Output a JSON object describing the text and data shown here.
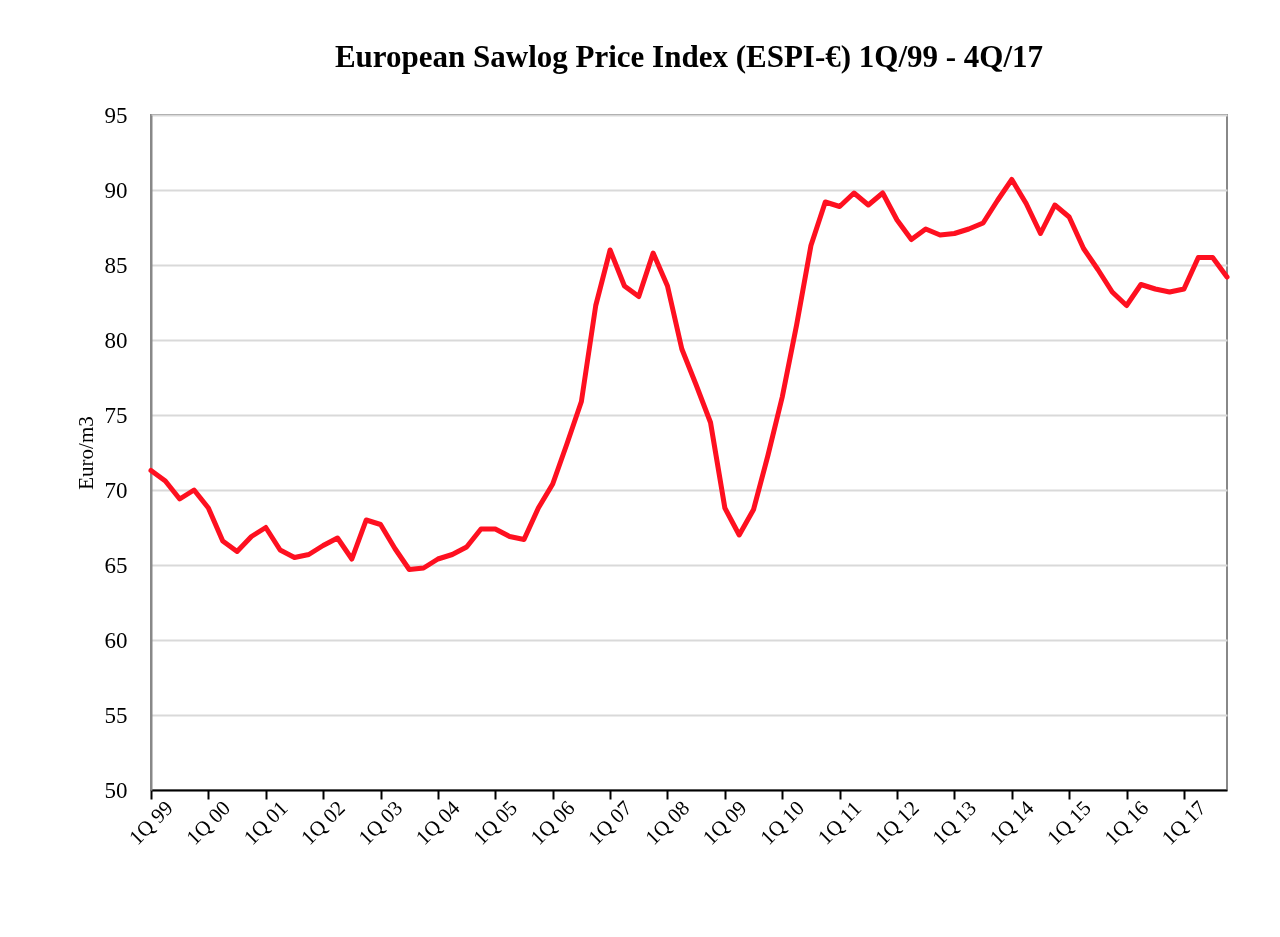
{
  "chart_data": {
    "type": "line",
    "title": "European Sawlog Price Index (ESPI-€) 1Q/99 - 4Q/17",
    "ylabel": "Euro/m3",
    "categories": [
      "1Q 99",
      null,
      null,
      null,
      "1Q 00",
      null,
      null,
      null,
      "1Q 01",
      null,
      null,
      null,
      "1Q 02",
      null,
      null,
      null,
      "1Q 03",
      null,
      null,
      null,
      "1Q 04",
      null,
      null,
      null,
      "1Q 05",
      null,
      null,
      null,
      "1Q 06",
      null,
      null,
      null,
      "1Q 07",
      null,
      null,
      null,
      "1Q 08",
      null,
      null,
      null,
      "1Q 09",
      null,
      null,
      null,
      "1Q 10",
      null,
      null,
      null,
      "1Q 11",
      null,
      null,
      null,
      "1Q 12",
      null,
      null,
      null,
      "1Q 13",
      null,
      null,
      null,
      "1Q 14",
      null,
      null,
      null,
      "1Q 15",
      null,
      null,
      null,
      "1Q 16",
      null,
      null,
      null,
      "1Q 17",
      null,
      null,
      null
    ],
    "series": [
      {
        "color": "#fe1020",
        "values": [
          71.3,
          70.6,
          69.4,
          70.0,
          68.8,
          66.6,
          65.9,
          66.9,
          67.5,
          66.0,
          65.5,
          65.7,
          66.3,
          66.8,
          65.4,
          68.0,
          67.7,
          66.1,
          64.7,
          64.8,
          65.4,
          65.7,
          66.2,
          67.4,
          67.4,
          66.9,
          66.7,
          68.8,
          70.4,
          73.1,
          75.9,
          82.3,
          86.0,
          83.6,
          82.9,
          85.8,
          83.6,
          79.4,
          77.0,
          74.5,
          68.8,
          67.0,
          68.7,
          72.3,
          76.2,
          81.0,
          86.3,
          89.2,
          88.9,
          89.8,
          89.0,
          89.8,
          88.0,
          86.7,
          87.4,
          87.0,
          87.1,
          87.4,
          87.8,
          89.3,
          90.7,
          89.1,
          87.1,
          89.0,
          88.2,
          86.1,
          84.7,
          83.2,
          82.3,
          83.7,
          83.4,
          83.2,
          83.4,
          85.5,
          85.5,
          84.2
        ]
      }
    ],
    "ylim": [
      50,
      95
    ],
    "yticks": [
      50,
      55,
      60,
      65,
      70,
      75,
      80,
      85,
      90,
      95
    ],
    "grid": "y",
    "line_style": "solid"
  }
}
